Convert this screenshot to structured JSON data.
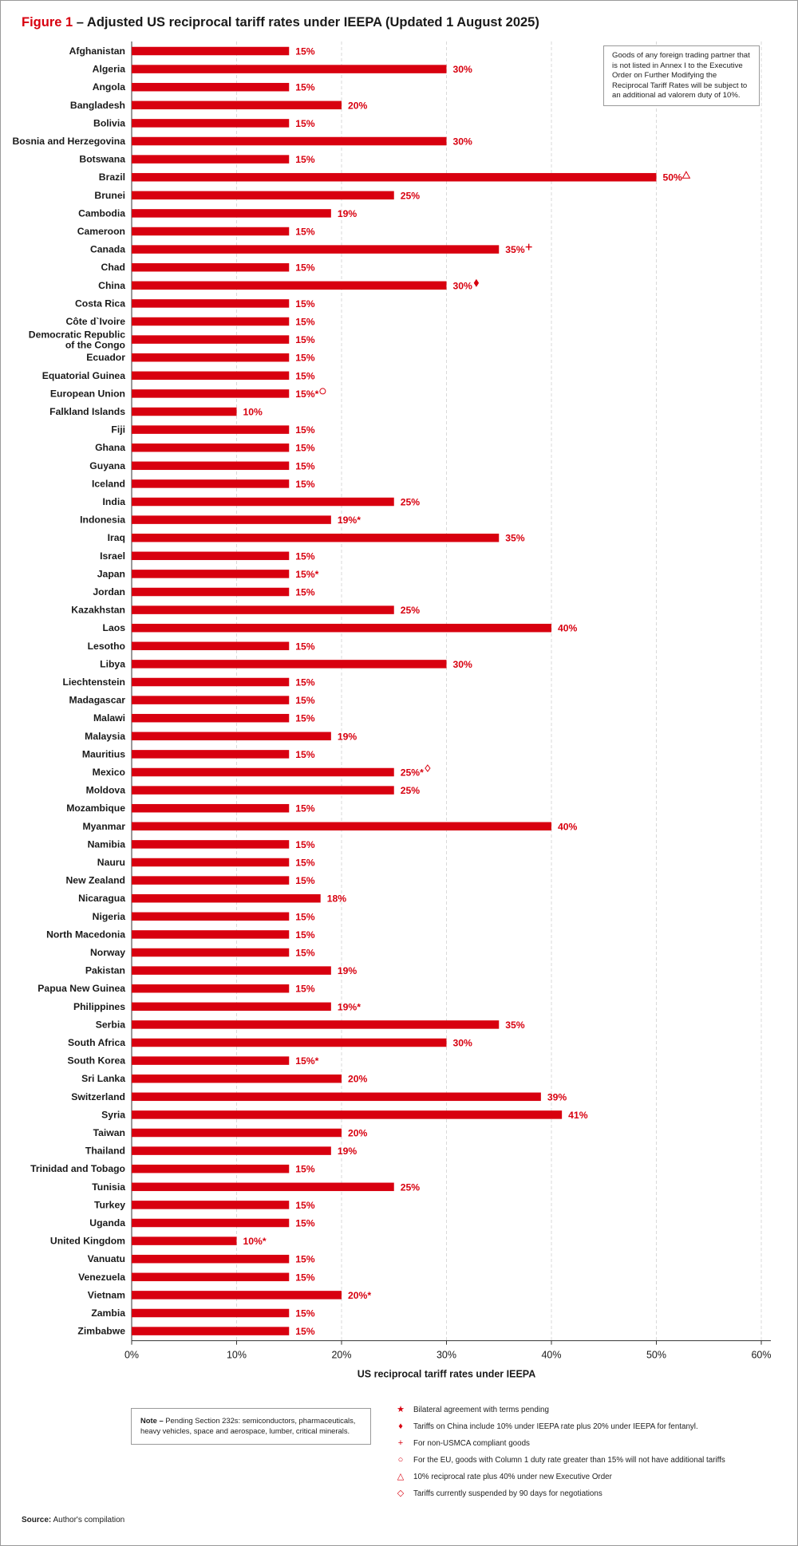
{
  "figure": {
    "label": "Figure 1",
    "title": " – Adjusted US reciprocal tariff rates under IEEPA (Updated 1 August 2025)"
  },
  "info_box": "Goods of any foreign trading partner that is not listed in Annex I to the Executive Order on Further Modifying the Reciprocal Tariff Rates will be subject to an additional ad valorem duty of 10%.",
  "note": {
    "label": "Note –",
    "text": " Pending Section 232s: semiconductors, pharmaceuticals, heavy vehicles, space and aerospace, lumber, critical minerals."
  },
  "legend": [
    {
      "icon": "star-icon",
      "symbol": "★",
      "text": "Bilateral agreement with terms pending"
    },
    {
      "icon": "filled-diamond-icon",
      "symbol": "♦",
      "text": "Tariffs on China include 10% under IEEPA rate plus 20% under IEEPA for fentanyl."
    },
    {
      "icon": "cross-icon",
      "symbol": "+",
      "text": "For non-USMCA compliant goods"
    },
    {
      "icon": "circle-icon",
      "symbol": "○",
      "text": "For the EU, goods with Column 1 duty rate greater than 15% will not have additional tariffs"
    },
    {
      "icon": "triangle-icon",
      "symbol": "△",
      "text": "10% reciprocal rate plus 40% under new Executive Order"
    },
    {
      "icon": "outline-diamond-icon",
      "symbol": "◇",
      "text": "Tariffs currently suspended by 90 days for negotiations"
    }
  ],
  "source": {
    "label": "Source:",
    "text": " Author's compilation"
  },
  "colors": {
    "bar": "#d8000f",
    "label": "#d8000f",
    "grid": "#d0d0d0"
  },
  "chart_data": {
    "type": "bar",
    "orientation": "horizontal",
    "xlabel": "US reciprocal tariff rates under IEEPA",
    "ylabel": "",
    "xlim": [
      0,
      60
    ],
    "xticks": [
      0,
      10,
      20,
      30,
      40,
      50,
      60
    ],
    "xtick_labels": [
      "0%",
      "10%",
      "20%",
      "30%",
      "40%",
      "50%",
      "60%"
    ],
    "grid": "vertical dashed",
    "categories": [
      "Afghanistan",
      "Algeria",
      "Angola",
      "Bangladesh",
      "Bolivia",
      "Bosnia and Herzegovina",
      "Botswana",
      "Brazil",
      "Brunei",
      "Cambodia",
      "Cameroon",
      "Canada",
      "Chad",
      "China",
      "Costa Rica",
      "Côte d`Ivoire",
      "Democratic Republic of the Congo",
      "Ecuador",
      "Equatorial Guinea",
      "European Union",
      "Falkland Islands",
      "Fiji",
      "Ghana",
      "Guyana",
      "Iceland",
      "India",
      "Indonesia",
      "Iraq",
      "Israel",
      "Japan",
      "Jordan",
      "Kazakhstan",
      "Laos",
      "Lesotho",
      "Libya",
      "Liechtenstein",
      "Madagascar",
      "Malawi",
      "Malaysia",
      "Mauritius",
      "Mexico",
      "Moldova",
      "Mozambique",
      "Myanmar",
      "Namibia",
      "Nauru",
      "New Zealand",
      "Nicaragua",
      "Nigeria",
      "North Macedonia",
      "Norway",
      "Pakistan",
      "Papua New Guinea",
      "Philippines",
      "Serbia",
      "South Africa",
      "South Korea",
      "Sri Lanka",
      "Switzerland",
      "Syria",
      "Taiwan",
      "Thailand",
      "Trinidad and Tobago",
      "Tunisia",
      "Turkey",
      "Uganda",
      "United Kingdom",
      "Vanuatu",
      "Venezuela",
      "Vietnam",
      "Zambia",
      "Zimbabwe"
    ],
    "values": [
      15,
      30,
      15,
      20,
      15,
      30,
      15,
      50,
      25,
      19,
      15,
      35,
      15,
      30,
      15,
      15,
      15,
      15,
      15,
      15,
      10,
      15,
      15,
      15,
      15,
      25,
      19,
      35,
      15,
      15,
      15,
      25,
      40,
      15,
      30,
      15,
      15,
      15,
      19,
      15,
      25,
      25,
      15,
      40,
      15,
      15,
      15,
      18,
      15,
      15,
      15,
      19,
      15,
      19,
      35,
      30,
      15,
      20,
      39,
      41,
      20,
      19,
      15,
      25,
      15,
      15,
      10,
      15,
      15,
      20,
      15,
      15
    ],
    "value_labels": [
      "15%",
      "30%",
      "15%",
      "20%",
      "15%",
      "30%",
      "15%",
      "50%",
      "25%",
      "19%",
      "15%",
      "35%",
      "15%",
      "30%",
      "15%",
      "15%",
      "15%",
      "15%",
      "15%",
      "15%*",
      "10%",
      "15%",
      "15%",
      "15%",
      "15%",
      "25%",
      "19%*",
      "35%",
      "15%",
      "15%*",
      "15%",
      "25%",
      "40%",
      "15%",
      "30%",
      "15%",
      "15%",
      "15%",
      "19%",
      "15%",
      "25%*",
      "25%",
      "15%",
      "40%",
      "15%",
      "15%",
      "15%",
      "18%",
      "15%",
      "15%",
      "15%",
      "19%",
      "15%",
      "19%*",
      "35%",
      "30%",
      "15%*",
      "20%",
      "39%",
      "41%",
      "20%",
      "19%",
      "15%",
      "25%",
      "15%",
      "15%",
      "10%*",
      "15%",
      "15%",
      "20%*",
      "15%",
      "15%"
    ],
    "markers": {
      "Brazil": "triangle",
      "Canada": "cross",
      "China": "filled-diamond",
      "European Union": "circle",
      "Mexico": "outline-diamond"
    }
  }
}
